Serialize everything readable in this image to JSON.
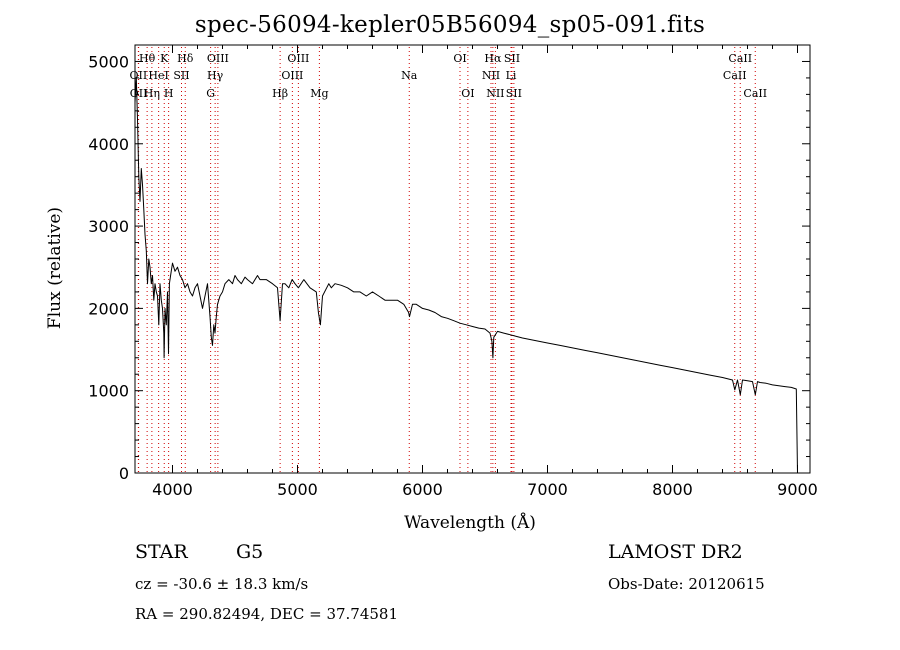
{
  "chart_data": {
    "type": "line",
    "title": "spec-56094-kepler05B56094_sp05-091.fits",
    "xlabel": "Wavelength (Å)",
    "ylabel": "Flux (relative)",
    "xlim": [
      3700,
      9100
    ],
    "ylim": [
      0,
      5200
    ],
    "xticks": [
      4000,
      5000,
      6000,
      7000,
      8000,
      9000
    ],
    "yticks": [
      0,
      1000,
      2000,
      3000,
      4000,
      5000
    ],
    "grid": false,
    "series": [
      {
        "x": [
          3700,
          3710,
          3720,
          3730,
          3740,
          3750,
          3760,
          3770,
          3780,
          3790,
          3800,
          3810,
          3820,
          3830,
          3840,
          3850,
          3860,
          3870,
          3880,
          3890,
          3900,
          3910,
          3920,
          3930,
          3933,
          3940,
          3950,
          3960,
          3968,
          3975,
          3985,
          4000,
          4020,
          4040,
          4060,
          4080,
          4100,
          4120,
          4140,
          4160,
          4180,
          4200,
          4220,
          4240,
          4260,
          4280,
          4300,
          4310,
          4320,
          4330,
          4340,
          4350,
          4360,
          4380,
          4400,
          4420,
          4450,
          4480,
          4500,
          4520,
          4550,
          4580,
          4600,
          4640,
          4680,
          4700,
          4750,
          4800,
          4840,
          4861,
          4880,
          4900,
          4930,
          4957,
          4980,
          5007,
          5050,
          5100,
          5150,
          5167,
          5183,
          5200,
          5250,
          5270,
          5300,
          5350,
          5400,
          5450,
          5500,
          5550,
          5600,
          5650,
          5700,
          5750,
          5800,
          5850,
          5889,
          5896,
          5920,
          5950,
          6000,
          6050,
          6100,
          6150,
          6200,
          6250,
          6300,
          6350,
          6400,
          6450,
          6500,
          6540,
          6555,
          6563,
          6570,
          6600,
          6650,
          6700,
          6750,
          6800,
          6900,
          7000,
          7100,
          7200,
          7300,
          7400,
          7500,
          7600,
          7700,
          7800,
          7900,
          8000,
          8100,
          8200,
          8300,
          8400,
          8480,
          8498,
          8520,
          8542,
          8560,
          8600,
          8640,
          8662,
          8680,
          8700,
          8750,
          8800,
          8850,
          8900,
          8950,
          8990,
          9000
        ],
        "y": [
          4500,
          4800,
          4300,
          3600,
          3300,
          3700,
          3500,
          3200,
          2900,
          2700,
          2300,
          2600,
          2500,
          2300,
          2400,
          2100,
          2300,
          2200,
          2150,
          1800,
          2300,
          2100,
          2000,
          1700,
          1400,
          2000,
          1800,
          2200,
          1450,
          2300,
          2400,
          2550,
          2450,
          2500,
          2400,
          2350,
          2250,
          2300,
          2200,
          2150,
          2250,
          2300,
          2150,
          2000,
          2150,
          2300,
          1900,
          1650,
          1550,
          1800,
          1700,
          1900,
          2050,
          2150,
          2200,
          2300,
          2350,
          2300,
          2400,
          2350,
          2300,
          2380,
          2350,
          2300,
          2400,
          2350,
          2350,
          2300,
          2250,
          1850,
          2300,
          2300,
          2250,
          2350,
          2300,
          2250,
          2350,
          2250,
          2200,
          1950,
          1800,
          2150,
          2300,
          2250,
          2300,
          2280,
          2250,
          2200,
          2200,
          2150,
          2200,
          2150,
          2100,
          2100,
          2100,
          2050,
          1950,
          1900,
          2050,
          2050,
          2000,
          1980,
          1950,
          1900,
          1880,
          1850,
          1820,
          1800,
          1780,
          1760,
          1750,
          1700,
          1600,
          1400,
          1650,
          1720,
          1700,
          1680,
          1660,
          1640,
          1610,
          1580,
          1550,
          1520,
          1490,
          1460,
          1430,
          1400,
          1370,
          1340,
          1310,
          1280,
          1250,
          1220,
          1190,
          1160,
          1130,
          1010,
          1130,
          950,
          1130,
          1120,
          1110,
          950,
          1110,
          1100,
          1090,
          1070,
          1060,
          1050,
          1040,
          1020,
          0
        ]
      }
    ],
    "lines": [
      {
        "label": "OII",
        "x": 3727,
        "row": 1,
        "color": "#000"
      },
      {
        "label": "OII",
        "x": 3729,
        "row": 2,
        "color": "#000"
      },
      {
        "label": "Hθ",
        "x": 3797,
        "row": 0,
        "color": "#000"
      },
      {
        "label": "Hη",
        "x": 3835,
        "row": 2,
        "color": "#000"
      },
      {
        "label": "HeI",
        "x": 3889,
        "row": 1,
        "color": "#000"
      },
      {
        "label": "K",
        "x": 3934,
        "row": 0,
        "color": "#000"
      },
      {
        "label": "H",
        "x": 3969,
        "row": 2,
        "color": "#000"
      },
      {
        "label": "SII",
        "x": 4072,
        "row": 1,
        "color": "#000"
      },
      {
        "label": "Hδ",
        "x": 4102,
        "row": 0,
        "color": "#000"
      },
      {
        "label": "G",
        "x": 4305,
        "row": 2,
        "color": "#000"
      },
      {
        "label": "Hγ",
        "x": 4341,
        "row": 1,
        "color": "#000"
      },
      {
        "label": "OIII",
        "x": 4363,
        "row": 0,
        "color": "#000"
      },
      {
        "label": "Hβ",
        "x": 4861,
        "row": 2,
        "color": "#000"
      },
      {
        "label": "OIII",
        "x": 4959,
        "row": 1,
        "color": "#000"
      },
      {
        "label": "OIII",
        "x": 5007,
        "row": 0,
        "color": "#000"
      },
      {
        "label": "Mg",
        "x": 5175,
        "row": 2,
        "color": "#000"
      },
      {
        "label": "Na",
        "x": 5894,
        "row": 1,
        "color": "#000"
      },
      {
        "label": "OI",
        "x": 6300,
        "row": 0,
        "color": "#000"
      },
      {
        "label": "OI",
        "x": 6363,
        "row": 2,
        "color": "#000"
      },
      {
        "label": "NII",
        "x": 6548,
        "row": 1,
        "color": "#000"
      },
      {
        "label": "Hα",
        "x": 6563,
        "row": 0,
        "color": "#000"
      },
      {
        "label": "NII",
        "x": 6583,
        "row": 2,
        "color": "#000"
      },
      {
        "label": "Li",
        "x": 6708,
        "row": 1,
        "color": "#000"
      },
      {
        "label": "SII",
        "x": 6716,
        "row": 0,
        "color": "#000"
      },
      {
        "label": "SII",
        "x": 6731,
        "row": 2,
        "color": "#000"
      },
      {
        "label": "CaII",
        "x": 8498,
        "row": 1,
        "color": "#000"
      },
      {
        "label": "CaII",
        "x": 8542,
        "row": 0,
        "color": "#000"
      },
      {
        "label": "CaII",
        "x": 8662,
        "row": 2,
        "color": "#000"
      }
    ],
    "line_colors": {
      "blue": "#0000c8",
      "red": "#d00000",
      "black": "#000000"
    }
  },
  "info": {
    "object_class": "STAR",
    "subclass": "G5",
    "survey": "LAMOST DR2",
    "redshift": "cz = -30.6 ± 18.3 km/s",
    "obs_date": "Obs-Date: 20120615",
    "coords": "RA = 290.82494, DEC =  37.74581"
  }
}
